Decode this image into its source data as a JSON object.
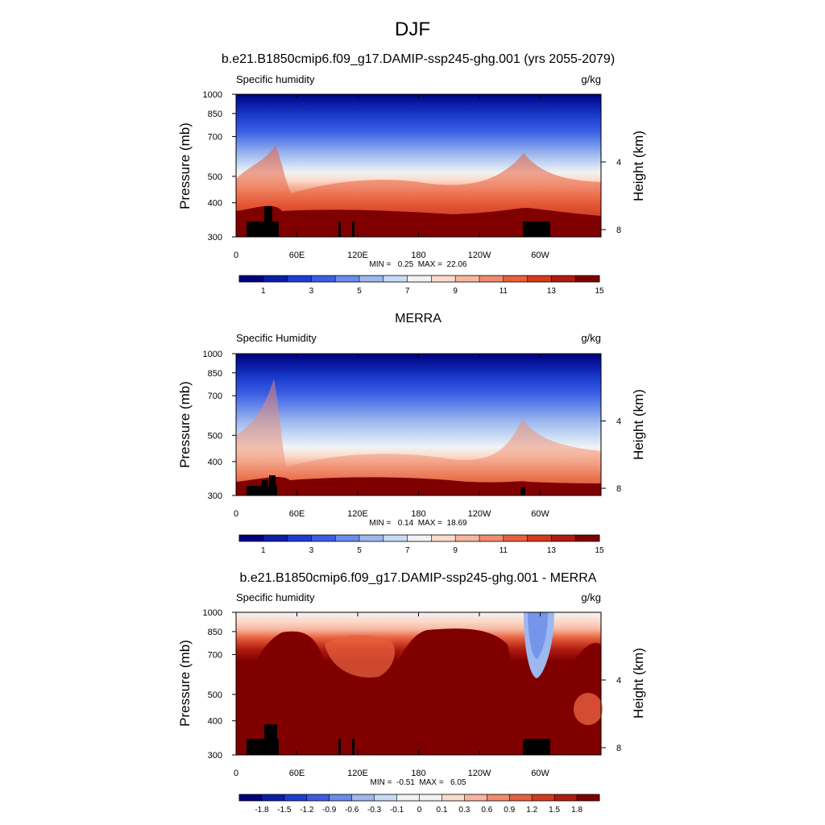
{
  "figure": {
    "title": "DJF"
  },
  "chart_data": [
    {
      "type": "heatmap",
      "title": "b.e21.B1850cmip6.f09_g17.DAMIP-ssp245-ghg.001 (yrs 2055-2079)",
      "left_label": "Specific humidity",
      "units": "g/kg",
      "ylabel": "Pressure (mb)",
      "y2label": "Height (km)",
      "x_ticks": [
        "0",
        "60E",
        "120E",
        "180",
        "120W",
        "60W"
      ],
      "y_ticks": [
        "300",
        "400",
        "500",
        "700",
        "850",
        "1000"
      ],
      "y2_ticks": [
        "8",
        "4"
      ],
      "ylim": [
        1000,
        300
      ],
      "y_scale": "log",
      "stats": "MIN =   0.25  MAX =  22.06",
      "colorbar": {
        "labels": [
          "1",
          "3",
          "5",
          "7",
          "9",
          "11",
          "13",
          "15"
        ],
        "colors": [
          "#00007f",
          "#0a1ea8",
          "#1c3ed0",
          "#3b5ee4",
          "#6a8cea",
          "#9eb8ee",
          "#c9dbf4",
          "#f2f2f4",
          "#fbdccc",
          "#f7b6a0",
          "#f08c6c",
          "#e8603e",
          "#d43a1e",
          "#b01c10",
          "#800000"
        ]
      }
    },
    {
      "type": "heatmap",
      "title": "MERRA",
      "left_label": "Specific Humidity",
      "units": "g/kg",
      "ylabel": "Pressure (mb)",
      "y2label": "Height (km)",
      "x_ticks": [
        "0",
        "60E",
        "120E",
        "180",
        "120W",
        "60W"
      ],
      "y_ticks": [
        "300",
        "400",
        "500",
        "700",
        "850",
        "1000"
      ],
      "y2_ticks": [
        "8",
        "4"
      ],
      "ylim": [
        1000,
        300
      ],
      "y_scale": "log",
      "stats": "MIN =   0.14  MAX =  18.69",
      "colorbar": {
        "labels": [
          "1",
          "3",
          "5",
          "7",
          "9",
          "11",
          "13",
          "15"
        ],
        "colors": [
          "#00007f",
          "#0a1ea8",
          "#1c3ed0",
          "#3b5ee4",
          "#6a8cea",
          "#9eb8ee",
          "#c9dbf4",
          "#f2f2f4",
          "#fbdccc",
          "#f7b6a0",
          "#f08c6c",
          "#e8603e",
          "#d43a1e",
          "#b01c10",
          "#800000"
        ]
      }
    },
    {
      "type": "heatmap",
      "title": "b.e21.B1850cmip6.f09_g17.DAMIP-ssp245-ghg.001 - MERRA",
      "left_label": "Specific humidity",
      "units": "g/kg",
      "ylabel": "Pressure (mb)",
      "y2label": "Height (km)",
      "x_ticks": [
        "0",
        "60E",
        "120E",
        "180",
        "120W",
        "60W"
      ],
      "y_ticks": [
        "300",
        "400",
        "500",
        "700",
        "850",
        "1000"
      ],
      "y2_ticks": [
        "8",
        "4"
      ],
      "ylim": [
        1000,
        300
      ],
      "y_scale": "log",
      "stats": "MIN =  -0.51  MAX =   6.05",
      "colorbar": {
        "labels": [
          "-1.8",
          "-1.5",
          "-1.2",
          "-0.9",
          "-0.6",
          "-0.3",
          "-0.1",
          "0",
          "0.1",
          "0.3",
          "0.6",
          "0.9",
          "1.2",
          "1.5",
          "1.8"
        ],
        "colors": [
          "#00007f",
          "#0a1ea8",
          "#1c3ed0",
          "#3b5ee4",
          "#6a8cea",
          "#9eb8ee",
          "#c9dbf4",
          "#f2f2f4",
          "#f2f2f4",
          "#fbdccc",
          "#f7b6a0",
          "#f08c6c",
          "#e8603e",
          "#d43a1e",
          "#b01c10",
          "#800000"
        ]
      }
    }
  ]
}
